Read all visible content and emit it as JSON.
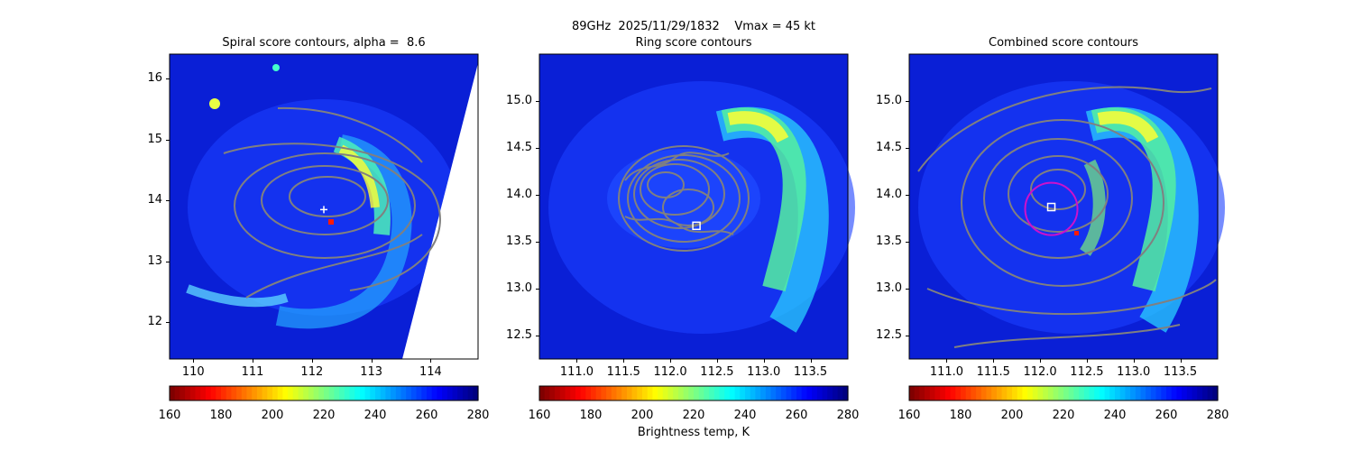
{
  "suptitle": "89GHz  2025/11/29/1832    Vmax = 45 kt",
  "colorbar": {
    "label": "Brightness temp, K",
    "ticks": [
      "160",
      "180",
      "200",
      "220",
      "240",
      "260",
      "280"
    ],
    "vmin": 160,
    "vmax": 280,
    "colormap": "jet_reversed"
  },
  "chart_data": [
    {
      "type": "heatmap",
      "title": "Spiral score contours, alpha =  8.6",
      "xlim": [
        109.6,
        114.8
      ],
      "ylim": [
        11.4,
        16.4
      ],
      "xticks": [
        "110",
        "111",
        "112",
        "113",
        "114"
      ],
      "yticks": [
        "12",
        "13",
        "14",
        "15",
        "16"
      ],
      "center_marker": {
        "shape": "plus",
        "x": 112.2,
        "y": 13.85
      },
      "overlay": "spiral score contours"
    },
    {
      "type": "heatmap",
      "title": "Ring score contours",
      "xlim": [
        110.6,
        113.9
      ],
      "ylim": [
        12.25,
        15.5
      ],
      "xticks": [
        "111.0",
        "111.5",
        "112.0",
        "112.5",
        "113.0",
        "113.5"
      ],
      "yticks": [
        "12.5",
        "13.0",
        "13.5",
        "14.0",
        "14.5",
        "15.0"
      ],
      "center_marker": {
        "shape": "square",
        "x": 112.28,
        "y": 13.67
      },
      "overlay": "ring score contours"
    },
    {
      "type": "heatmap",
      "title": "Combined score contours",
      "xlim": [
        110.6,
        113.9
      ],
      "ylim": [
        12.25,
        15.5
      ],
      "xticks": [
        "111.0",
        "111.5",
        "112.0",
        "112.5",
        "113.0",
        "113.5"
      ],
      "yticks": [
        "12.5",
        "13.0",
        "13.5",
        "14.0",
        "14.5",
        "15.0"
      ],
      "center_marker": {
        "shape": "square",
        "x": 112.12,
        "y": 13.87
      },
      "ring": {
        "x": 112.12,
        "y": 13.85,
        "radius_deg": 0.28,
        "color": "#cc11cc"
      },
      "overlay": "combined score contours"
    }
  ]
}
